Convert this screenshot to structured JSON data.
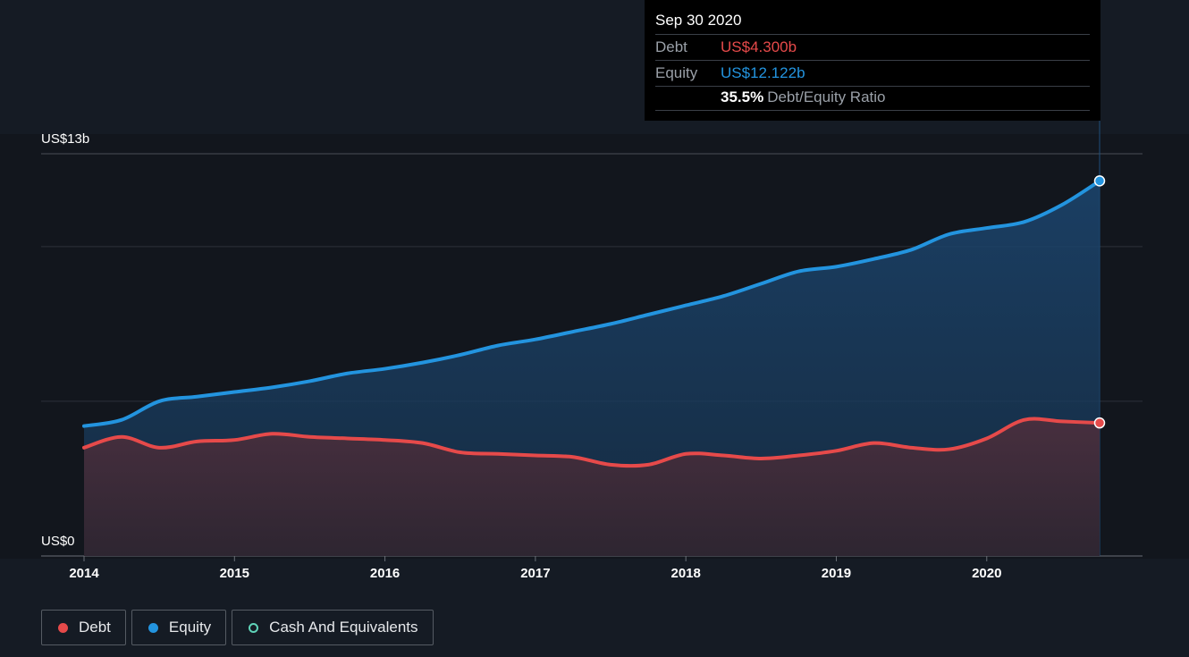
{
  "tooltip": {
    "date": "Sep 30 2020",
    "debt_label": "Debt",
    "debt_value": "US$4.300b",
    "equity_label": "Equity",
    "equity_value": "US$12.122b",
    "ratio_value": "35.5%",
    "ratio_label": "Debt/Equity Ratio"
  },
  "legend": [
    {
      "label": "Debt",
      "color": "#e64a4a",
      "style": "filled"
    },
    {
      "label": "Equity",
      "color": "#2394df",
      "style": "filled"
    },
    {
      "label": "Cash And Equivalents",
      "color": "#5fd3b8",
      "style": "outline"
    }
  ],
  "chart_data": {
    "type": "area",
    "ylim": [
      0,
      13
    ],
    "y_axis_labels": [
      "US$13b",
      "US$0"
    ],
    "x_tick_labels": [
      "2014",
      "2015",
      "2016",
      "2017",
      "2018",
      "2019",
      "2020"
    ],
    "x_ticks": [
      2014,
      2015,
      2016,
      2017,
      2018,
      2019,
      2020
    ],
    "xlim": [
      2014,
      2020.75
    ],
    "grid": true,
    "series": [
      {
        "name": "Equity",
        "color": "#2394df",
        "x": [
          2014.0,
          2014.25,
          2014.5,
          2014.75,
          2015.0,
          2015.25,
          2015.5,
          2015.75,
          2016.0,
          2016.25,
          2016.5,
          2016.75,
          2017.0,
          2017.25,
          2017.5,
          2017.75,
          2018.0,
          2018.25,
          2018.5,
          2018.75,
          2019.0,
          2019.25,
          2019.5,
          2019.75,
          2020.0,
          2020.25,
          2020.5,
          2020.75
        ],
        "values": [
          4.2,
          4.4,
          5.0,
          5.15,
          5.3,
          5.45,
          5.65,
          5.9,
          6.05,
          6.25,
          6.5,
          6.8,
          7.0,
          7.25,
          7.5,
          7.8,
          8.1,
          8.4,
          8.8,
          9.2,
          9.35,
          9.6,
          9.9,
          10.4,
          10.6,
          10.8,
          11.35,
          12.122
        ]
      },
      {
        "name": "Debt",
        "color": "#e64a4a",
        "x": [
          2014.0,
          2014.25,
          2014.5,
          2014.75,
          2015.0,
          2015.25,
          2015.5,
          2015.75,
          2016.0,
          2016.25,
          2016.5,
          2016.75,
          2017.0,
          2017.25,
          2017.5,
          2017.75,
          2018.0,
          2018.25,
          2018.5,
          2018.75,
          2019.0,
          2019.25,
          2019.5,
          2019.75,
          2020.0,
          2020.25,
          2020.5,
          2020.75
        ],
        "values": [
          3.5,
          3.85,
          3.5,
          3.7,
          3.75,
          3.95,
          3.85,
          3.8,
          3.75,
          3.65,
          3.35,
          3.3,
          3.25,
          3.2,
          2.95,
          2.95,
          3.3,
          3.25,
          3.15,
          3.25,
          3.4,
          3.65,
          3.5,
          3.45,
          3.8,
          4.4,
          4.35,
          4.3
        ]
      }
    ],
    "tooltip_x": 2020.75
  }
}
